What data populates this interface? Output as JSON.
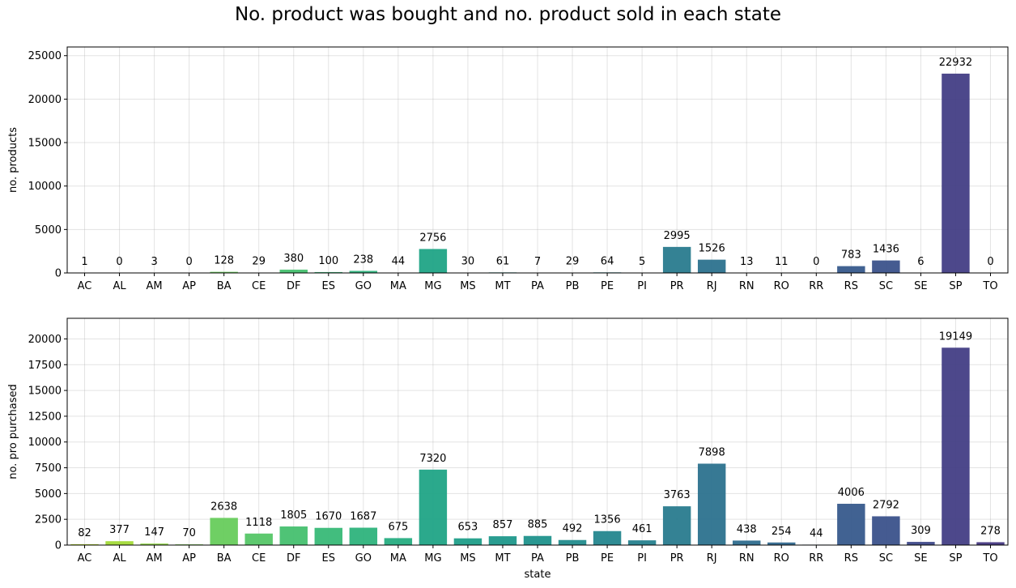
{
  "title": "No. product was bought and no. product sold in each state",
  "chart_data": [
    {
      "type": "bar",
      "categories": [
        "AC",
        "AL",
        "AM",
        "AP",
        "BA",
        "CE",
        "DF",
        "ES",
        "GO",
        "MA",
        "MG",
        "MS",
        "MT",
        "PA",
        "PB",
        "PE",
        "PI",
        "PR",
        "RJ",
        "RN",
        "RO",
        "RR",
        "RS",
        "SC",
        "SE",
        "SP",
        "TO"
      ],
      "values": [
        1,
        0,
        3,
        0,
        128,
        29,
        380,
        100,
        238,
        44,
        2756,
        30,
        61,
        7,
        29,
        64,
        5,
        2995,
        1526,
        13,
        11,
        0,
        783,
        1436,
        6,
        22932,
        0
      ],
      "xlabel": "",
      "ylabel": "no. products",
      "ylim": [
        0,
        26000
      ],
      "yticks": [
        0,
        5000,
        10000,
        15000,
        20000,
        25000
      ],
      "grid": true
    },
    {
      "type": "bar",
      "categories": [
        "AC",
        "AL",
        "AM",
        "AP",
        "BA",
        "CE",
        "DF",
        "ES",
        "GO",
        "MA",
        "MG",
        "MS",
        "MT",
        "PA",
        "PB",
        "PE",
        "PI",
        "PR",
        "RJ",
        "RN",
        "RO",
        "RR",
        "RS",
        "SC",
        "SE",
        "SP",
        "TO"
      ],
      "values": [
        82,
        377,
        147,
        70,
        2638,
        1118,
        1805,
        1670,
        1687,
        675,
        7320,
        653,
        857,
        885,
        492,
        1356,
        461,
        3763,
        7898,
        438,
        254,
        44,
        4006,
        2792,
        309,
        19149,
        278
      ],
      "xlabel": "state",
      "ylabel": "no. pro purchased",
      "ylim": [
        0,
        22000
      ],
      "yticks": [
        0,
        2500,
        5000,
        7500,
        10000,
        12500,
        15000,
        17500,
        20000
      ],
      "grid": true
    }
  ],
  "colors": {
    "palette": [
      "#b8de29",
      "#a2da37",
      "#8ed645",
      "#7ad151",
      "#67cc5c",
      "#55c667",
      "#46c06f",
      "#38b977",
      "#2eb37c",
      "#26ad81",
      "#20a486",
      "#1f9e89",
      "#1f988b",
      "#1f928c",
      "#228c8d",
      "#24868e",
      "#26818e",
      "#297b8e",
      "#2c728e",
      "#2e6d8e",
      "#31688e",
      "#34618d",
      "#375a8c",
      "#3b528b",
      "#3e4989",
      "#433e85",
      "#453781"
    ],
    "bar_opacity": 0.95
  }
}
